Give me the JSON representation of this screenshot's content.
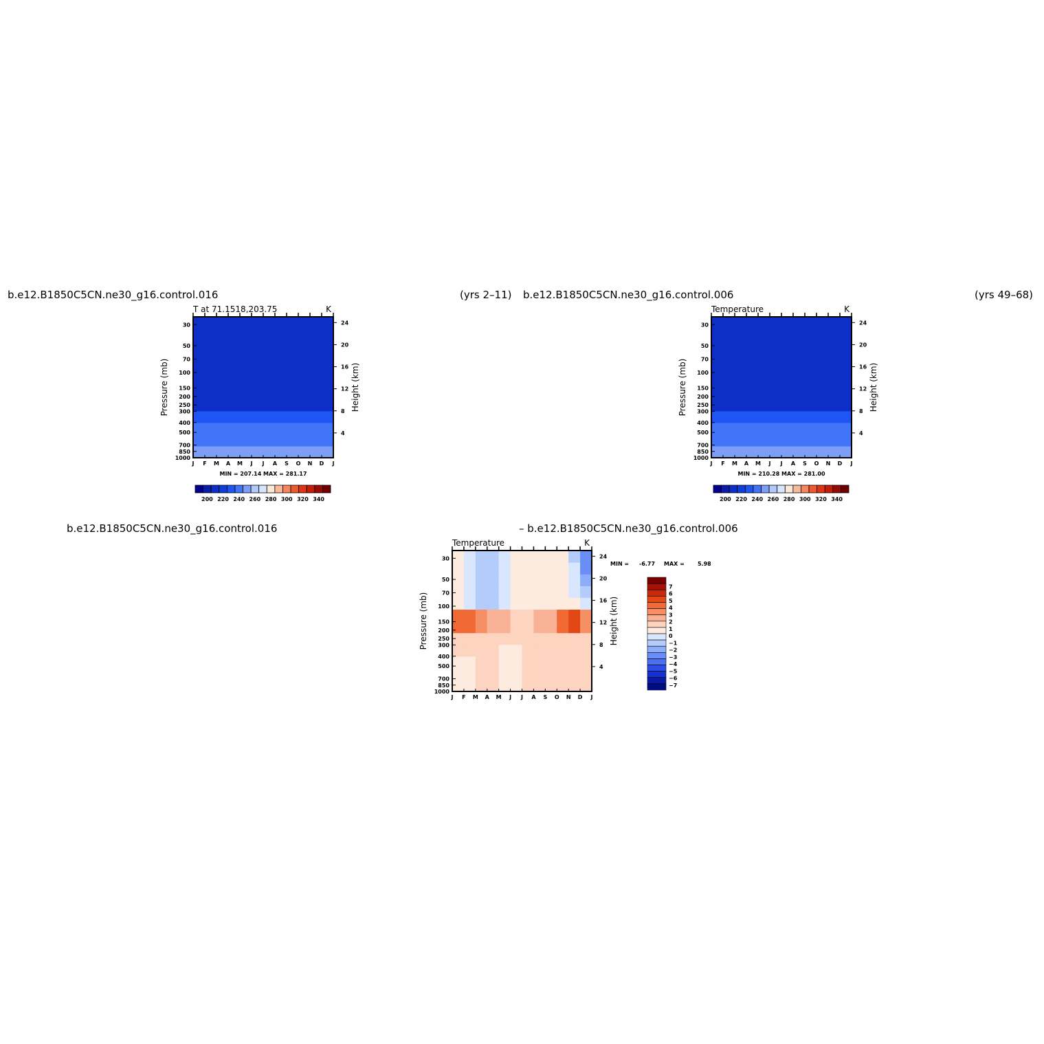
{
  "titles": {
    "p1_left": "b.e12.B1850C5CN.ne30_g16.control.016",
    "p1_right": "(yrs 2–11)",
    "p2_left": "b.e12.B1850C5CN.ne30_g16.control.006",
    "p2_right": "(yrs 49–68)",
    "p3_left": "b.e12.B1850C5CN.ne30_g16.control.016",
    "p3_right": "– b.e12.B1850C5CN.ne30_g16.control.006"
  },
  "chart_data": [
    {
      "type": "heatmap",
      "name": "T at 71.1518,203.75",
      "subtitle": "T at 71.1518,203.75",
      "units": "K",
      "x": [
        "J",
        "F",
        "M",
        "A",
        "M",
        "J",
        "J",
        "A",
        "S",
        "O",
        "N",
        "D",
        "J"
      ],
      "y_pressure": [
        1000,
        850,
        700,
        500,
        400,
        300,
        250,
        200,
        150,
        100,
        70,
        50,
        30
      ],
      "ylabel": "Pressure (mb)",
      "y2label": "Height (km)",
      "y2_ticks": [
        4,
        8,
        12,
        16,
        20,
        24
      ],
      "stats": "MIN = 207.14  MAX = 281.17",
      "min": 207.14,
      "max": 281.17,
      "colorbar_labels": [
        "200",
        "220",
        "240",
        "260",
        "280",
        "300",
        "320",
        "340"
      ],
      "levels": [
        190,
        200,
        210,
        220,
        230,
        240,
        250,
        260,
        270,
        280,
        290,
        300,
        310,
        320,
        330,
        340,
        350
      ]
    },
    {
      "type": "heatmap",
      "name": "Temperature",
      "subtitle": "Temperature",
      "units": "K",
      "x": [
        "J",
        "F",
        "M",
        "A",
        "M",
        "J",
        "J",
        "A",
        "S",
        "O",
        "N",
        "D",
        "J"
      ],
      "y_pressure": [
        1000,
        850,
        700,
        500,
        400,
        300,
        250,
        200,
        150,
        100,
        70,
        50,
        30
      ],
      "ylabel": "Pressure (mb)",
      "y2label": "Height (km)",
      "y2_ticks": [
        4,
        8,
        12,
        16,
        20,
        24
      ],
      "stats": "MIN = 210.28  MAX = 281.00",
      "min": 210.28,
      "max": 281.0,
      "colorbar_labels": [
        "200",
        "220",
        "240",
        "260",
        "280",
        "300",
        "320",
        "340"
      ],
      "levels": [
        190,
        200,
        210,
        220,
        230,
        240,
        250,
        260,
        270,
        280,
        290,
        300,
        310,
        320,
        330,
        340,
        350
      ]
    },
    {
      "type": "heatmap",
      "name": "Temperature difference",
      "subtitle": "Temperature",
      "units": "K",
      "x": [
        "J",
        "F",
        "M",
        "A",
        "M",
        "J",
        "J",
        "A",
        "S",
        "O",
        "N",
        "D",
        "J"
      ],
      "y_pressure": [
        1000,
        850,
        700,
        500,
        400,
        300,
        250,
        200,
        150,
        100,
        70,
        50,
        30
      ],
      "ylabel": "Pressure (mb)",
      "y2label": "Height (km)",
      "y2_ticks": [
        4,
        8,
        12,
        16,
        20,
        24
      ],
      "stats_min_label": "MIN =",
      "stats_min": "-6.77",
      "stats_max_label": "MAX =",
      "stats_max": "5.98",
      "min": -6.77,
      "max": 5.98,
      "colorbar_labels": [
        "7",
        "6",
        "5",
        "4",
        "3",
        "2",
        "1",
        "0",
        "−1",
        "−2",
        "−3",
        "−4",
        "−5",
        "−6",
        "−7"
      ]
    }
  ]
}
